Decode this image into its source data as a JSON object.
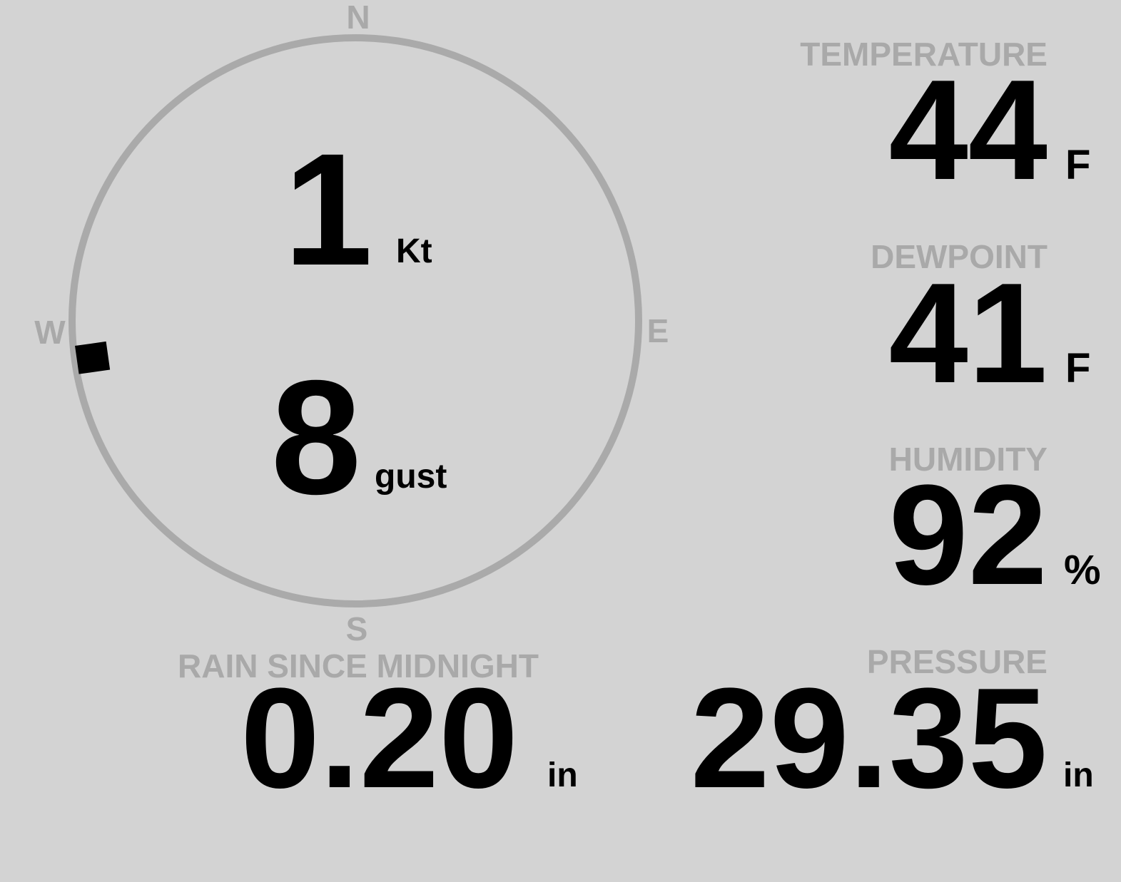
{
  "wind": {
    "speed": "1",
    "speed_unit": "Kt",
    "gust": "8",
    "gust_unit": "gust",
    "direction_deg": 262,
    "compass": {
      "n": "N",
      "e": "E",
      "s": "S",
      "w": "W"
    },
    "ring_color": "#aaaaaa",
    "indicator_color": "#000000"
  },
  "temperature": {
    "label": "TEMPERATURE",
    "value": "44",
    "unit": "F"
  },
  "dewpoint": {
    "label": "DEWPOINT",
    "value": "41",
    "unit": "F"
  },
  "humidity": {
    "label": "HUMIDITY",
    "value": "92",
    "unit": "%"
  },
  "rain": {
    "label": "RAIN SINCE MIDNIGHT",
    "value": "0.20",
    "unit": "in"
  },
  "pressure": {
    "label": "PRESSURE",
    "value": "29.35",
    "unit": "in"
  },
  "colors": {
    "background": "#d3d3d3",
    "label": "#a9a9a9",
    "value": "#000000"
  }
}
